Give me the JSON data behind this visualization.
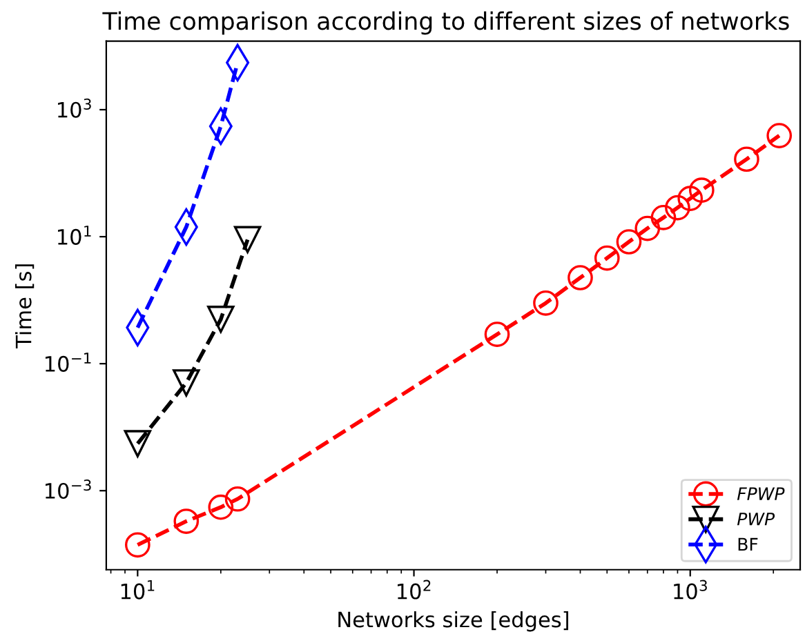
{
  "chart_data": {
    "type": "line",
    "title": "Time comparison according to different sizes of networks",
    "xlabel": "Networks size [edges]",
    "ylabel": "Time [s]",
    "log": "xy",
    "xlim": [
      7.7,
      2500
    ],
    "ylim": [
      5.7e-05,
      12000
    ],
    "xticks": [
      {
        "value": 10,
        "label": "10$^{1}$"
      },
      {
        "value": 100,
        "label": "10$^{2}$"
      },
      {
        "value": 1000,
        "label": "10$^{3}$"
      }
    ],
    "yticks": [
      {
        "value": 0.001,
        "label": "10$^{−3}$"
      },
      {
        "value": 0.1,
        "label": "10$^{−1}$"
      },
      {
        "value": 10,
        "label": "10$^{1}$"
      },
      {
        "value": 1000,
        "label": "10$^{3}$"
      }
    ],
    "grid": false,
    "legend": "bottom right",
    "line_style": "dashed",
    "series": [
      {
        "name": "FPWP",
        "color": "#ff0000",
        "marker": "circle",
        "x": [
          10,
          15,
          20,
          23,
          200,
          300,
          400,
          500,
          600,
          700,
          800,
          900,
          1000,
          1100,
          1600,
          2100
        ],
        "values": [
          0.00014,
          0.00033,
          0.00055,
          0.00074,
          0.29,
          0.9,
          2.26,
          4.6,
          8.3,
          13.5,
          20,
          28.6,
          40,
          54,
          166,
          390
        ]
      },
      {
        "name": "PWP",
        "color": "#000000",
        "marker": "triangle",
        "x": [
          10,
          15,
          20,
          25
        ],
        "values": [
          0.0055,
          0.05,
          0.5,
          9
        ]
      },
      {
        "name": "BF",
        "color": "#0000ff",
        "marker": "diamond",
        "x": [
          10,
          15,
          20,
          23
        ],
        "values": [
          0.37,
          14.2,
          550,
          5500
        ]
      }
    ]
  }
}
